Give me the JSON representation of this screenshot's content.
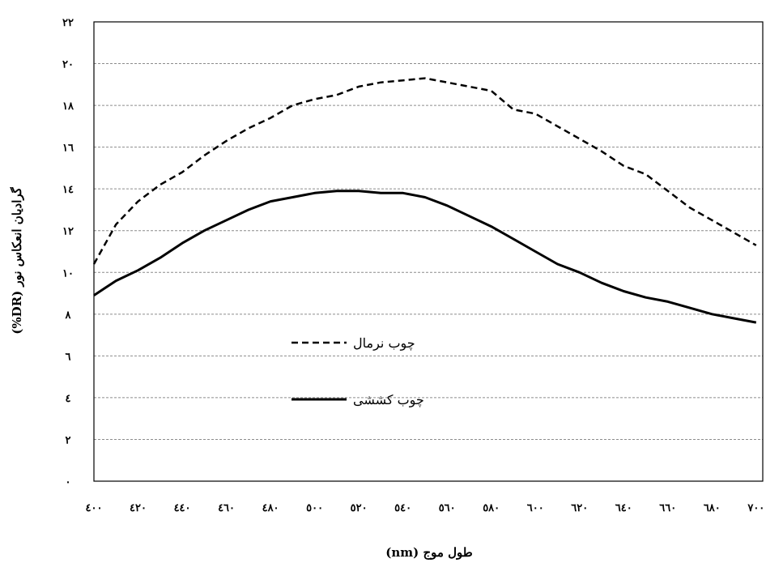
{
  "chart_data": {
    "type": "line",
    "title": "",
    "xlabel": "طول موج (nm)",
    "ylabel": "گرادیان انعکاس نور (DR%)",
    "x": [
      400,
      410,
      420,
      430,
      440,
      450,
      460,
      470,
      480,
      490,
      500,
      510,
      520,
      530,
      540,
      550,
      560,
      570,
      580,
      590,
      600,
      610,
      620,
      630,
      640,
      650,
      660,
      670,
      680,
      690,
      700
    ],
    "x_ticks": [
      400,
      420,
      440,
      460,
      480,
      500,
      520,
      540,
      560,
      580,
      600,
      620,
      640,
      660,
      680,
      700
    ],
    "x_tick_labels": [
      "٤٠٠",
      "٤٢٠",
      "٤٤٠",
      "٤٦٠",
      "٤٨٠",
      "٥٠٠",
      "٥٢٠",
      "٥٤٠",
      "٥٦٠",
      "٥٨٠",
      "٦٠٠",
      "٦٢٠",
      "٦٤٠",
      "٦٦٠",
      "٦٨٠",
      "٧٠٠"
    ],
    "y_ticks": [
      0,
      2,
      4,
      6,
      8,
      10,
      12,
      14,
      16,
      18,
      20,
      22
    ],
    "y_tick_labels": [
      "٠",
      "٢",
      "٤",
      "٦",
      "٨",
      "١٠",
      "١٢",
      "١٤",
      "١٦",
      "١٨",
      "٢٠",
      "٢٢"
    ],
    "ylim": [
      0,
      22
    ],
    "grid": true,
    "series": [
      {
        "name": "چوب نرمال",
        "style": "dashed",
        "values": [
          10.4,
          12.3,
          13.4,
          14.2,
          14.8,
          15.6,
          16.3,
          16.9,
          17.4,
          18.0,
          18.3,
          18.5,
          18.9,
          19.1,
          19.2,
          19.3,
          19.1,
          18.9,
          18.7,
          17.8,
          17.6,
          17.0,
          16.4,
          15.8,
          15.1,
          14.7,
          13.9,
          13.1,
          12.5,
          11.9,
          11.3
        ]
      },
      {
        "name": "چوب کششی",
        "style": "solid",
        "values": [
          8.9,
          9.6,
          10.1,
          10.7,
          11.4,
          12.0,
          12.5,
          13.0,
          13.4,
          13.6,
          13.8,
          13.9,
          13.9,
          13.8,
          13.8,
          13.6,
          13.2,
          12.7,
          12.2,
          11.6,
          11.0,
          10.4,
          10.0,
          9.5,
          9.1,
          8.8,
          8.6,
          8.3,
          8.0,
          7.8,
          7.6
        ]
      }
    ],
    "legend_position": "center-left",
    "colors": {
      "line": "#000000",
      "grid": "#8c8c8c",
      "frame": "#000000"
    }
  }
}
